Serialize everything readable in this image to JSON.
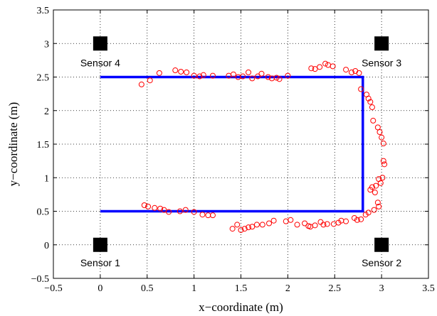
{
  "chart_data": {
    "type": "scatter",
    "xlabel": "x−coordinate (m)",
    "ylabel": "y−coordinate (m)",
    "xlim": [
      -0.5,
      3.5
    ],
    "ylim": [
      -0.5,
      3.5
    ],
    "xticks": [
      -0.5,
      0,
      0.5,
      1,
      1.5,
      2,
      2.5,
      3,
      3.5
    ],
    "yticks": [
      -0.5,
      0,
      0.5,
      1,
      1.5,
      2,
      2.5,
      3,
      3.5
    ],
    "xtick_labels": [
      "−0.5",
      "0",
      "0.5",
      "1",
      "1.5",
      "2",
      "2.5",
      "3",
      "3.5"
    ],
    "ytick_labels": [
      "−0.5",
      "0",
      "0.5",
      "1",
      "1.5",
      "2",
      "2.5",
      "3",
      "3.5"
    ],
    "grid": true,
    "colors": {
      "path": "#0000ff",
      "points": "#ff0000",
      "sensor": "#000000"
    },
    "path": {
      "x": [
        0,
        2.8,
        2.8,
        0
      ],
      "y": [
        2.5,
        2.5,
        0.5,
        0.5
      ]
    },
    "sensors": [
      {
        "label": "Sensor 1",
        "x": 0,
        "y": 0
      },
      {
        "label": "Sensor 2",
        "x": 3,
        "y": 0
      },
      {
        "label": "Sensor 3",
        "x": 3,
        "y": 3
      },
      {
        "label": "Sensor 4",
        "x": 0,
        "y": 3
      }
    ],
    "points": {
      "x": [
        0.44,
        0.53,
        0.63,
        0.8,
        0.86,
        0.92,
        1.0,
        1.06,
        1.1,
        1.2,
        1.37,
        1.42,
        1.47,
        1.52,
        1.58,
        1.62,
        1.68,
        1.72,
        1.79,
        1.83,
        1.88,
        1.91,
        2.0,
        2.25,
        2.29,
        2.34,
        2.4,
        2.43,
        2.48,
        2.62,
        2.68,
        2.72,
        2.76,
        2.78,
        2.84,
        2.86,
        2.88,
        2.9,
        2.91,
        2.96,
        2.98,
        3.0,
        3.02,
        3.02,
        3.03,
        3.01,
        2.97,
        2.99,
        2.94,
        2.9,
        2.88,
        2.93,
        2.96,
        2.97,
        2.92,
        2.86,
        2.83,
        2.78,
        2.74,
        2.71,
        2.62,
        2.57,
        2.54,
        2.49,
        2.42,
        2.38,
        2.35,
        2.29,
        2.24,
        2.22,
        2.18,
        2.1,
        2.03,
        1.98,
        1.85,
        1.8,
        1.73,
        1.67,
        1.62,
        1.58,
        1.54,
        1.5,
        1.46,
        1.41,
        1.2,
        1.15,
        1.09,
        1.0,
        0.91,
        0.85,
        0.73,
        0.68,
        0.64,
        0.58,
        0.51,
        0.47
      ],
      "y": [
        2.39,
        2.45,
        2.56,
        2.6,
        2.58,
        2.57,
        2.52,
        2.51,
        2.53,
        2.52,
        2.52,
        2.54,
        2.5,
        2.51,
        2.57,
        2.48,
        2.51,
        2.55,
        2.5,
        2.48,
        2.49,
        2.47,
        2.52,
        2.63,
        2.62,
        2.65,
        2.7,
        2.68,
        2.66,
        2.61,
        2.57,
        2.59,
        2.56,
        2.32,
        2.24,
        2.18,
        2.13,
        2.05,
        1.85,
        1.75,
        1.68,
        1.6,
        1.51,
        1.25,
        1.2,
        1.0,
        0.98,
        0.92,
        0.88,
        0.86,
        0.82,
        0.78,
        0.63,
        0.57,
        0.52,
        0.48,
        0.45,
        0.38,
        0.37,
        0.4,
        0.35,
        0.36,
        0.33,
        0.31,
        0.31,
        0.3,
        0.34,
        0.29,
        0.27,
        0.28,
        0.32,
        0.3,
        0.37,
        0.35,
        0.36,
        0.32,
        0.3,
        0.3,
        0.27,
        0.26,
        0.24,
        0.22,
        0.3,
        0.24,
        0.44,
        0.44,
        0.45,
        0.49,
        0.52,
        0.5,
        0.49,
        0.52,
        0.54,
        0.55,
        0.57,
        0.59
      ]
    }
  }
}
